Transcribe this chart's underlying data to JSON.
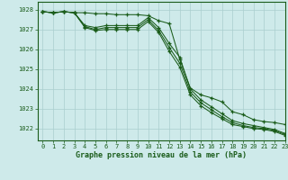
{
  "title": "Graphe pression niveau de la mer (hPa)",
  "background_color": "#ceeaea",
  "grid_color": "#aacece",
  "line_color": "#1a5c1a",
  "xlim": [
    -0.5,
    23
  ],
  "ylim": [
    1021.4,
    1028.4
  ],
  "yticks": [
    1022,
    1023,
    1024,
    1025,
    1026,
    1027,
    1028
  ],
  "xticks": [
    0,
    1,
    2,
    3,
    4,
    5,
    6,
    7,
    8,
    9,
    10,
    11,
    12,
    13,
    14,
    15,
    16,
    17,
    18,
    19,
    20,
    21,
    22,
    23
  ],
  "line1": [
    1027.9,
    1027.85,
    1027.9,
    1027.85,
    1027.85,
    1027.8,
    1027.8,
    1027.75,
    1027.75,
    1027.75,
    1027.7,
    1027.45,
    1027.3,
    1025.5,
    1024.05,
    1023.7,
    1023.55,
    1023.35,
    1022.85,
    1022.7,
    1022.45,
    1022.35,
    1022.3,
    1022.2
  ],
  "line2": [
    1027.9,
    1027.85,
    1027.9,
    1027.85,
    1027.2,
    1027.1,
    1027.2,
    1027.2,
    1027.2,
    1027.2,
    1027.6,
    1027.1,
    1026.3,
    1025.6,
    1024.0,
    1023.45,
    1023.1,
    1022.75,
    1022.4,
    1022.25,
    1022.15,
    1022.05,
    1021.95,
    1021.75
  ],
  "line3": [
    1027.9,
    1027.85,
    1027.9,
    1027.85,
    1027.15,
    1027.0,
    1027.1,
    1027.1,
    1027.1,
    1027.1,
    1027.5,
    1026.95,
    1026.1,
    1025.3,
    1023.85,
    1023.3,
    1022.95,
    1022.6,
    1022.3,
    1022.15,
    1022.05,
    1022.0,
    1021.9,
    1021.7
  ],
  "line4": [
    1027.9,
    1027.85,
    1027.9,
    1027.85,
    1027.1,
    1026.95,
    1027.0,
    1027.0,
    1027.0,
    1027.0,
    1027.4,
    1026.85,
    1025.9,
    1025.1,
    1023.7,
    1023.15,
    1022.8,
    1022.5,
    1022.2,
    1022.1,
    1022.0,
    1021.95,
    1021.85,
    1021.65
  ]
}
